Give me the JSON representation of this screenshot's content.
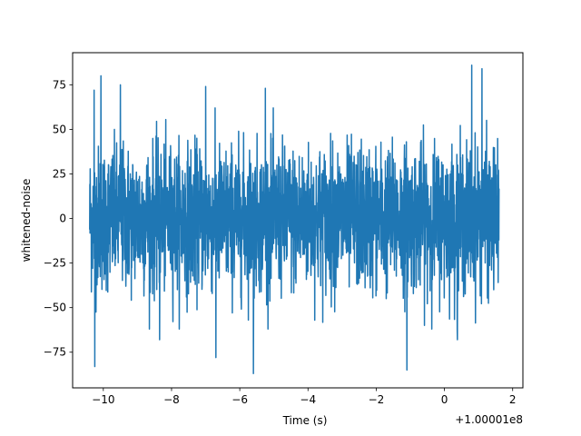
{
  "chart_data": {
    "type": "line",
    "xlabel": "Time (s)",
    "ylabel": "whitened-noise",
    "x_offset_label": "+1.00001e8",
    "xlim": [
      -10.9,
      2.3
    ],
    "ylim": [
      -95,
      93
    ],
    "x_range": [
      -10.4,
      1.6
    ],
    "xticks": [
      -10,
      -8,
      -6,
      -4,
      -2,
      0,
      2
    ],
    "xtick_labels": [
      "−10",
      "−8",
      "−6",
      "−4",
      "−2",
      "0",
      "2"
    ],
    "yticks": [
      -75,
      -50,
      -25,
      0,
      25,
      50,
      75
    ],
    "ytick_labels": [
      "−75",
      "−50",
      "−25",
      "0",
      "25",
      "50",
      "75"
    ],
    "grid": false,
    "line_color": "#1f77b4",
    "series": [
      {
        "values_description_omitted": true,
        "x_start": -10.4,
        "x_end": 1.6,
        "typical_amplitude": 20,
        "max": 86,
        "min": -87
      }
    ],
    "peaks": [
      {
        "x": -10.27,
        "y": 72
      },
      {
        "x": -10.25,
        "y": -83
      },
      {
        "x": -10.07,
        "y": 80
      },
      {
        "x": -9.5,
        "y": 75
      },
      {
        "x": -8.35,
        "y": -68
      },
      {
        "x": -7.0,
        "y": 74
      },
      {
        "x": -6.7,
        "y": -78
      },
      {
        "x": -5.6,
        "y": -87
      },
      {
        "x": -5.25,
        "y": 73
      },
      {
        "x": -1.1,
        "y": -85
      },
      {
        "x": 0.38,
        "y": -68
      },
      {
        "x": 0.8,
        "y": 86
      },
      {
        "x": 1.1,
        "y": 84
      }
    ]
  }
}
